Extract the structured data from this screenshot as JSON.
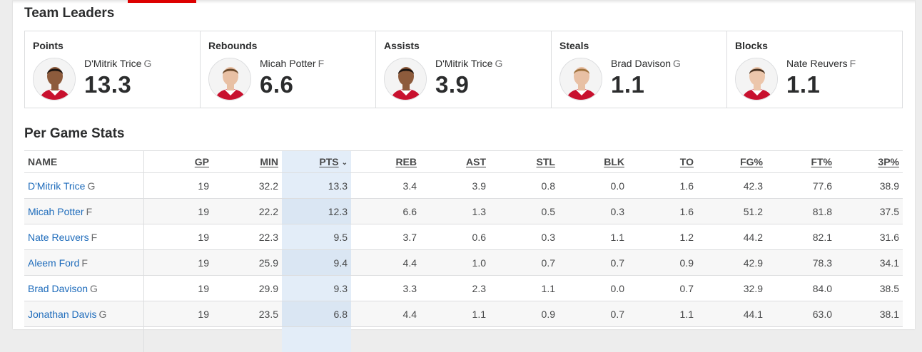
{
  "sections": {
    "team_leaders_title": "Team Leaders",
    "per_game_title": "Per Game Stats"
  },
  "leaders": [
    {
      "category": "Points",
      "name": "D'Mitrik Trice",
      "pos": "G",
      "value": "13.3",
      "jersey_color": "#c8102e",
      "skin": "#8d5b3c",
      "hair": "#1c1410"
    },
    {
      "category": "Rebounds",
      "name": "Micah Potter",
      "pos": "F",
      "value": "6.6",
      "jersey_color": "#c8102e",
      "skin": "#e8c0a4",
      "hair": "#6b4a2c"
    },
    {
      "category": "Assists",
      "name": "D'Mitrik Trice",
      "pos": "G",
      "value": "3.9",
      "jersey_color": "#c8102e",
      "skin": "#8d5b3c",
      "hair": "#1c1410"
    },
    {
      "category": "Steals",
      "name": "Brad Davison",
      "pos": "G",
      "value": "1.1",
      "jersey_color": "#c8102e",
      "skin": "#e8c0a4",
      "hair": "#a0733f"
    },
    {
      "category": "Blocks",
      "name": "Nate Reuvers",
      "pos": "F",
      "value": "1.1",
      "jersey_color": "#c8102e",
      "skin": "#ecc6ab",
      "hair": "#4a3422"
    }
  ],
  "table": {
    "headers": [
      "NAME",
      "GP",
      "MIN",
      "PTS",
      "REB",
      "AST",
      "STL",
      "BLK",
      "TO",
      "FG%",
      "FT%",
      "3P%"
    ],
    "sorted_column": "PTS",
    "rows": [
      {
        "name": "D'Mitrik Trice",
        "pos": "G",
        "stats": [
          "19",
          "32.2",
          "13.3",
          "3.4",
          "3.9",
          "0.8",
          "0.0",
          "1.6",
          "42.3",
          "77.6",
          "38.9"
        ]
      },
      {
        "name": "Micah Potter",
        "pos": "F",
        "stats": [
          "19",
          "22.2",
          "12.3",
          "6.6",
          "1.3",
          "0.5",
          "0.3",
          "1.6",
          "51.2",
          "81.8",
          "37.5"
        ]
      },
      {
        "name": "Nate Reuvers",
        "pos": "F",
        "stats": [
          "19",
          "22.3",
          "9.5",
          "3.7",
          "0.6",
          "0.3",
          "1.1",
          "1.2",
          "44.2",
          "82.1",
          "31.6"
        ]
      },
      {
        "name": "Aleem Ford",
        "pos": "F",
        "stats": [
          "19",
          "25.9",
          "9.4",
          "4.4",
          "1.0",
          "0.7",
          "0.7",
          "0.9",
          "42.9",
          "78.3",
          "34.1"
        ]
      },
      {
        "name": "Brad Davison",
        "pos": "G",
        "stats": [
          "19",
          "29.9",
          "9.3",
          "3.3",
          "2.3",
          "1.1",
          "0.0",
          "0.7",
          "32.9",
          "84.0",
          "38.5"
        ]
      },
      {
        "name": "Jonathan Davis",
        "pos": "G",
        "stats": [
          "19",
          "23.5",
          "6.8",
          "4.4",
          "1.1",
          "0.9",
          "0.7",
          "1.1",
          "44.1",
          "63.0",
          "38.1"
        ]
      }
    ]
  },
  "colors": {
    "accent": "#dd0000",
    "link": "#1d6bbb",
    "sorted_column_bg": "#e3edf8"
  },
  "icons": {
    "sort": "chevron-down-icon"
  }
}
